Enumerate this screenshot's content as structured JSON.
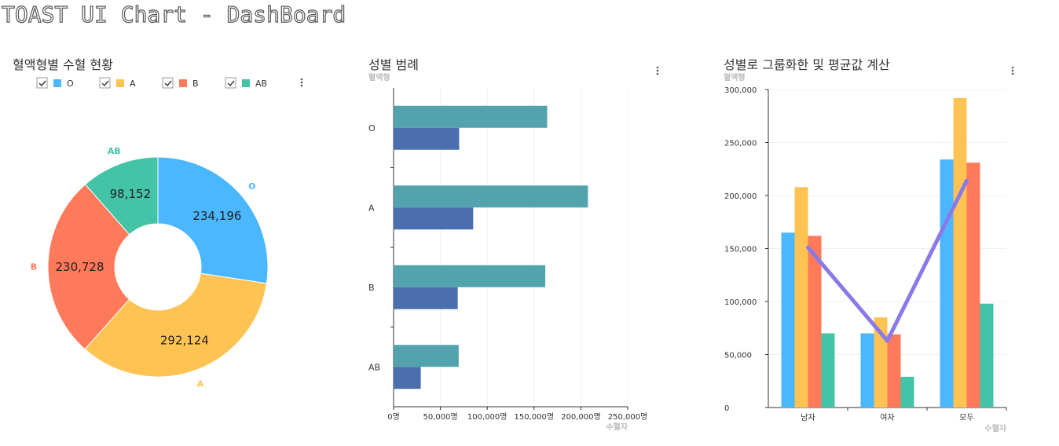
{
  "header": {
    "title": "TOAST UI Chart - DashBoard"
  },
  "colors": {
    "O": "#4ab7ff",
    "A": "#ffc353",
    "B": "#ff7a5a",
    "AB": "#43c4a6",
    "bar_series_1": "#52a3ae",
    "bar_series_2": "#4b6fae",
    "avg_line": "#8a7ae6"
  },
  "icons": {
    "menu": "more-vertical-icon",
    "checkbox": "checkbox-checked-icon"
  },
  "chart_data": [
    {
      "type": "pie",
      "variant": "donut",
      "title": "혈액형별 수혈 현황",
      "legend": {
        "placement": "top",
        "items": [
          {
            "label": "O",
            "checked": true
          },
          {
            "label": "A",
            "checked": true
          },
          {
            "label": "B",
            "checked": true
          },
          {
            "label": "AB",
            "checked": true
          }
        ]
      },
      "slices": [
        {
          "name": "O",
          "value": 234196,
          "label": "234,196",
          "outer_label": "O"
        },
        {
          "name": "A",
          "value": 292124,
          "label": "292,124",
          "outer_label": "A"
        },
        {
          "name": "B",
          "value": 230728,
          "label": "230,728",
          "outer_label": "B"
        },
        {
          "name": "AB",
          "value": 98152,
          "label": "98,152",
          "outer_label": "AB"
        }
      ]
    },
    {
      "type": "bar",
      "orientation": "horizontal",
      "title": "성별 범례",
      "ylabel": "혈액형",
      "xlabel": "수혈자",
      "categories": [
        "O",
        "A",
        "B",
        "AB"
      ],
      "xlim": [
        0,
        250000
      ],
      "x_ticks": [
        "0명",
        "50,000명",
        "100,000명",
        "150,000명",
        "200,000명",
        "250,000명"
      ],
      "series": [
        {
          "values": [
            164000,
            207500,
            162000,
            69500
          ]
        },
        {
          "values": [
            70000,
            85000,
            68500,
            29000
          ]
        }
      ],
      "grid": true
    },
    {
      "type": "bar",
      "orientation": "vertical",
      "title": "성별로 그룹화한 및 평균값 계산",
      "ylabel": "혈액형",
      "xlabel": "수혈자",
      "categories": [
        "남자",
        "여자",
        "모두"
      ],
      "ylim": [
        0,
        300000
      ],
      "y_ticks": [
        "0",
        "50,000",
        "100,000",
        "150,000",
        "200,000",
        "250,000",
        "300,000"
      ],
      "series": [
        {
          "name": "O",
          "values": [
            165000,
            70000,
            234000
          ]
        },
        {
          "name": "A",
          "values": [
            208000,
            85000,
            292000
          ]
        },
        {
          "name": "B",
          "values": [
            162000,
            69000,
            231000
          ]
        },
        {
          "name": "AB",
          "values": [
            70000,
            29000,
            98000
          ]
        }
      ],
      "line": {
        "values": [
          151000,
          63000,
          214000
        ]
      },
      "grid": true
    }
  ]
}
